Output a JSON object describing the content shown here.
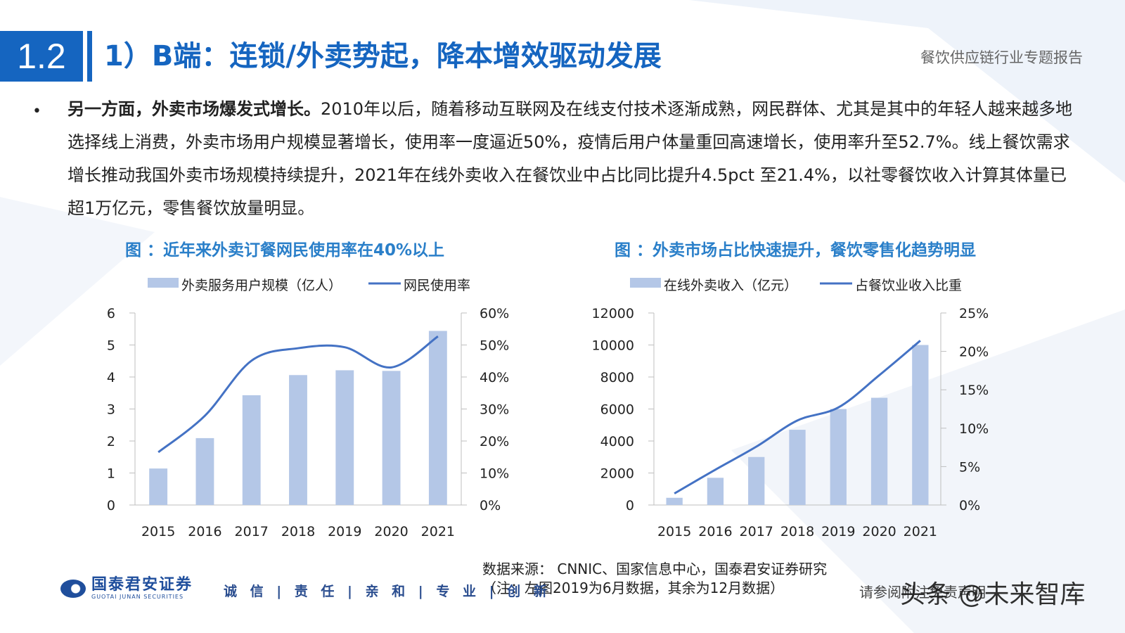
{
  "header": {
    "section_number": "1.2",
    "title": "1）B端：连锁/外卖势起，降本增效驱动发展",
    "report_name": "餐饮供应链行业专题报告"
  },
  "body": {
    "bullet": "•",
    "lead": "另一方面，外卖市场爆发式增长。",
    "text": "2010年以后，随着移动互联网及在线支付技术逐渐成熟，网民群体、尤其是其中的年轻人越来越多地选择线上消费，外卖市场用户规模显著增长，使用率一度逼近50%，疫情后用户体量重回高速增长，使用率升至52.7%。线上餐饮需求增长推动我国外卖市场规模持续提升，2021年在线外卖收入在餐饮业中占比同比提升4.5pct 至21.4%，以社零餐饮收入计算其体量已超1万亿元，零售餐饮放量明显。"
  },
  "chart_data": [
    {
      "type": "bar",
      "title": "图 ：近年来外卖订餐网民使用率在40%以上",
      "categories": [
        "2015",
        "2016",
        "2017",
        "2018",
        "2019",
        "2020",
        "2021"
      ],
      "series": [
        {
          "name": "外卖服务用户规模（亿人）",
          "type": "bar",
          "axis": "left",
          "color": "#b4c7e7",
          "values": [
            1.14,
            2.09,
            3.43,
            4.06,
            4.21,
            4.19,
            5.44
          ]
        },
        {
          "name": "网民使用率",
          "type": "line",
          "axis": "right",
          "color": "#4472c4",
          "values": [
            16.5,
            27.9,
            45.1,
            49.0,
            49.3,
            43.0,
            52.7
          ]
        }
      ],
      "y_left": {
        "ticks": [
          "0",
          "1",
          "2",
          "3",
          "4",
          "5",
          "6"
        ],
        "ylim": [
          0,
          6
        ]
      },
      "y_right": {
        "ticks": [
          "0%",
          "10%",
          "20%",
          "30%",
          "40%",
          "50%",
          "60%"
        ],
        "ylim": [
          0,
          60
        ]
      },
      "legend": "top"
    },
    {
      "type": "bar",
      "title": "图 ：外卖市场占比快速提升，餐饮零售化趋势明显",
      "categories": [
        "2015",
        "2016",
        "2017",
        "2018",
        "2019",
        "2020",
        "2021"
      ],
      "series": [
        {
          "name": "在线外卖收入（亿元）",
          "type": "bar",
          "axis": "left",
          "color": "#b4c7e7",
          "values": [
            450,
            1700,
            3000,
            4700,
            6000,
            6700,
            10000
          ]
        },
        {
          "name": "占餐饮业收入比重",
          "type": "line",
          "axis": "right",
          "color": "#4472c4",
          "values": [
            1.5,
            4.6,
            7.6,
            11.0,
            12.7,
            16.9,
            21.4
          ]
        }
      ],
      "y_left": {
        "ticks": [
          "0",
          "2000",
          "4000",
          "6000",
          "8000",
          "10000",
          "12000"
        ],
        "ylim": [
          0,
          12000
        ]
      },
      "y_right": {
        "ticks": [
          "0%",
          "5%",
          "10%",
          "15%",
          "20%",
          "25%"
        ],
        "ylim": [
          0,
          25
        ]
      },
      "legend": "top"
    }
  ],
  "footer": {
    "source": "数据来源： CNNIC、国家信息中心，国泰君安证券研究（注：左图2019为6月数据，其余为12月数据）",
    "logo_cn": "国泰君安证券",
    "logo_en": "GUOTAI JUNAN SECURITIES",
    "slogan": "诚 信 | 责 任 | 亲 和 | 专 业 | 创 新",
    "disclaimer": "请参阅附注免责声明",
    "watermark": "头条 @未来智库"
  },
  "colors": {
    "brand_blue": "#1565c0",
    "title_blue": "#2a7fc9",
    "bar": "#b4c7e7",
    "line": "#4472c4"
  }
}
